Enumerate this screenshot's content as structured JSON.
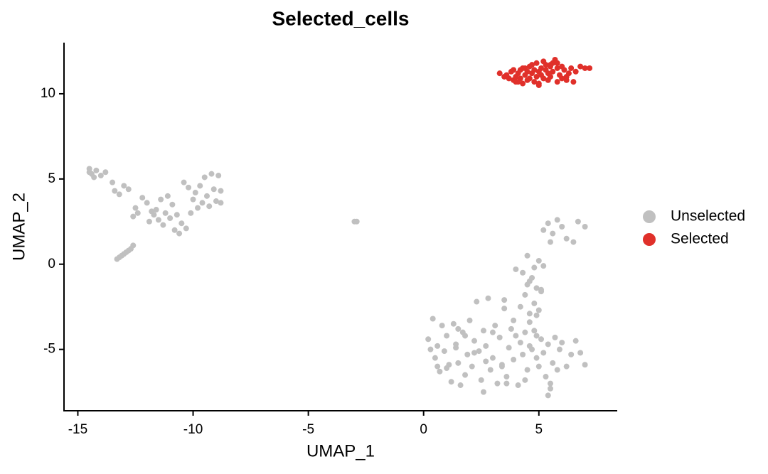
{
  "chart_data": {
    "type": "scatter",
    "title": "Selected_cells",
    "x_label": "UMAP_1",
    "y_label": "UMAP_2",
    "xlim": [
      -15.6,
      8.4
    ],
    "ylim": [
      -8.6,
      13
    ],
    "xticks": [
      -15,
      -10,
      -5,
      0,
      5
    ],
    "yticks": [
      -5,
      0,
      5,
      10
    ],
    "grid": false,
    "legend": "right",
    "series": [
      {
        "name": "Unselected",
        "color": "#c0c0c0",
        "x": [
          -14.5,
          -14.4,
          -14.3,
          -14.5,
          -14.2,
          -14.0,
          -13.8,
          -13.5,
          -13.4,
          -13.2,
          -13.0,
          -12.8,
          -12.6,
          -12.5,
          -12.4,
          -12.2,
          -12.0,
          -11.9,
          -11.8,
          -11.7,
          -11.6,
          -11.5,
          -11.4,
          -11.3,
          -11.2,
          -11.1,
          -11.0,
          -10.9,
          -10.8,
          -10.7,
          -10.6,
          -10.5,
          -10.4,
          -10.3,
          -10.2,
          -10.1,
          -10.0,
          -9.9,
          -9.8,
          -9.7,
          -9.6,
          -9.5,
          -9.4,
          -9.3,
          -9.2,
          -9.1,
          -9.0,
          -8.9,
          -8.8,
          -8.8,
          -13.3,
          -13.2,
          -13.1,
          -13.0,
          -12.9,
          -12.8,
          -12.7,
          -12.6,
          -3.0,
          -2.9,
          5.2,
          5.4,
          5.6,
          5.8,
          6.0,
          6.2,
          6.5,
          6.7,
          7.0,
          5.5,
          4.5,
          4.8,
          5.0,
          5.2,
          4.3,
          4.6,
          4.9,
          5.1,
          4.0,
          4.4,
          4.8,
          5.0,
          4.6,
          4.2,
          5.1,
          4.9,
          4.5,
          3.5,
          3.9,
          4.7,
          0.2,
          0.4,
          0.5,
          0.6,
          0.7,
          0.8,
          0.9,
          1.0,
          1.1,
          1.2,
          1.3,
          1.4,
          1.5,
          1.6,
          1.7,
          1.8,
          1.9,
          2.0,
          2.1,
          2.2,
          2.3,
          2.4,
          2.5,
          2.6,
          2.7,
          2.8,
          2.9,
          3.0,
          3.1,
          3.2,
          3.3,
          3.4,
          3.5,
          3.6,
          3.7,
          3.8,
          3.9,
          4.0,
          4.1,
          4.2,
          4.3,
          4.4,
          4.5,
          4.6,
          4.7,
          4.8,
          4.9,
          5.0,
          5.1,
          5.2,
          5.3,
          5.4,
          5.5,
          5.6,
          5.7,
          5.8,
          5.9,
          6.0,
          6.2,
          6.4,
          6.6,
          6.8,
          7.0,
          5.4,
          5.5,
          0.3,
          1.5,
          2.6,
          3.4,
          4.6,
          1.0,
          1.8,
          2.7,
          3.6,
          4.4,
          4.9,
          3.0,
          2.2,
          1.4,
          0.6
        ],
        "values": [
          5.6,
          5.3,
          5.1,
          5.4,
          5.5,
          5.2,
          5.4,
          4.8,
          4.3,
          4.1,
          4.6,
          4.4,
          2.8,
          3.3,
          3.0,
          3.9,
          3.6,
          2.5,
          3.1,
          2.9,
          3.2,
          2.6,
          3.8,
          2.3,
          3.0,
          4.0,
          2.7,
          3.5,
          2.0,
          2.9,
          1.8,
          2.4,
          4.8,
          2.1,
          4.5,
          3.0,
          3.8,
          4.2,
          3.3,
          4.6,
          3.6,
          5.1,
          4.0,
          3.4,
          5.3,
          4.4,
          3.7,
          5.2,
          4.3,
          3.6,
          0.3,
          0.4,
          0.5,
          0.6,
          0.7,
          0.8,
          0.9,
          1.1,
          2.5,
          2.5,
          2.0,
          2.4,
          1.8,
          2.6,
          2.2,
          1.5,
          1.3,
          2.5,
          2.2,
          1.3,
          0.5,
          -0.2,
          0.2,
          -0.1,
          -0.5,
          -1.0,
          -1.4,
          -1.5,
          -0.3,
          -1.8,
          -2.3,
          -2.7,
          -2.9,
          -2.5,
          -1.6,
          -3.0,
          -1.2,
          -2.6,
          -3.3,
          -0.8,
          -4.4,
          -3.2,
          -5.5,
          -4.8,
          -6.3,
          -3.6,
          -5.1,
          -4.2,
          -5.9,
          -6.9,
          -3.5,
          -4.7,
          -5.8,
          -7.1,
          -4.0,
          -6.5,
          -5.3,
          -3.3,
          -6.0,
          -4.5,
          -2.2,
          -5.1,
          -6.8,
          -3.9,
          -4.8,
          -2.0,
          -6.2,
          -5.5,
          -3.6,
          -7.0,
          -4.3,
          -5.9,
          -2.1,
          -6.6,
          -4.9,
          -3.8,
          -5.6,
          -4.2,
          -7.1,
          -4.6,
          -5.3,
          -4.0,
          -6.2,
          -4.8,
          -5.0,
          -3.9,
          -5.5,
          -6.0,
          -4.4,
          -5.2,
          -6.6,
          -4.7,
          -7.3,
          -5.8,
          -4.3,
          -6.2,
          -5.0,
          -4.6,
          -6.0,
          -5.3,
          -4.5,
          -5.2,
          -5.9,
          -7.7,
          -7.0,
          -5.0,
          -3.8,
          -7.5,
          -6.0,
          -3.4,
          -6.1,
          -4.2,
          -5.7,
          -7.0,
          -6.8,
          -4.2,
          -4.0,
          -5.2,
          -4.9,
          -6.0
        ]
      },
      {
        "name": "Selected",
        "color": "#e0302a",
        "x": [
          3.3,
          3.5,
          3.6,
          3.7,
          3.8,
          3.9,
          4.0,
          4.0,
          4.1,
          4.2,
          4.2,
          4.3,
          4.4,
          4.4,
          4.5,
          4.5,
          4.6,
          4.6,
          4.7,
          4.7,
          4.8,
          4.8,
          4.9,
          4.9,
          5.0,
          5.0,
          5.1,
          5.1,
          5.2,
          5.2,
          5.3,
          5.3,
          5.4,
          5.4,
          5.5,
          5.5,
          5.6,
          5.6,
          5.7,
          5.8,
          5.8,
          5.9,
          6.0,
          6.0,
          6.1,
          6.2,
          6.3,
          6.4,
          6.5,
          6.6,
          6.8,
          7.0,
          7.2,
          4.1,
          3.9,
          4.3,
          5.0,
          5.5,
          6.2,
          5.8
        ],
        "values": [
          11.2,
          11.0,
          11.1,
          10.9,
          11.3,
          10.8,
          11.0,
          10.7,
          11.2,
          10.9,
          11.4,
          10.6,
          11.1,
          11.5,
          10.8,
          11.3,
          11.6,
          10.9,
          11.2,
          11.7,
          10.7,
          11.4,
          11.0,
          11.8,
          11.3,
          10.6,
          11.5,
          11.1,
          11.9,
          10.9,
          11.4,
          11.7,
          10.8,
          11.2,
          11.6,
          11.0,
          11.3,
          11.8,
          12.0,
          10.7,
          11.5,
          11.1,
          11.6,
          10.9,
          11.4,
          10.8,
          11.2,
          11.5,
          10.7,
          11.3,
          11.6,
          11.5,
          11.5,
          10.7,
          11.4,
          11.5,
          10.5,
          11.7,
          11.0,
          11.8
        ]
      }
    ]
  }
}
